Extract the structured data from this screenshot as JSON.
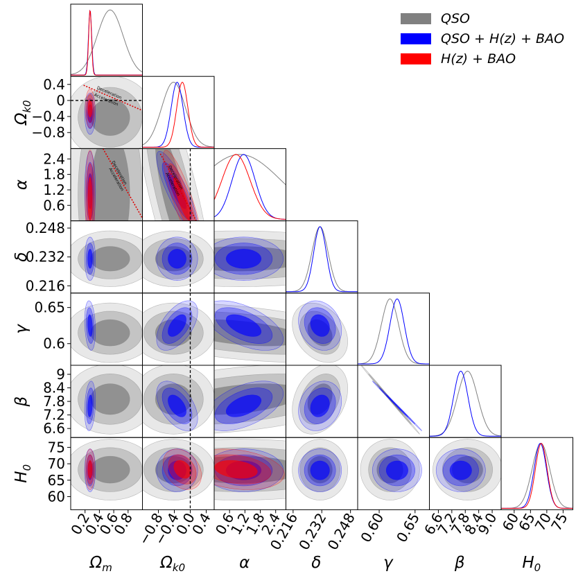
{
  "chart_data": {
    "type": "corner",
    "parameters": [
      {
        "name": "Omega_m",
        "label": "Ω",
        "sub": "m",
        "range": [
          0.0,
          1.0
        ],
        "ticks": [
          "0.2",
          "0.4",
          "0.6",
          "0.8"
        ],
        "tick_values": [
          0.2,
          0.4,
          0.6,
          0.8
        ]
      },
      {
        "name": "Omega_k0",
        "label": "Ω",
        "sub": "k0",
        "range": [
          -1.2,
          0.6
        ],
        "ticks": [
          "−0.8",
          "−0.4",
          "0",
          "0.4"
        ],
        "x_ticks": [
          "−0.8",
          "−0.4",
          "0.0",
          "0.4"
        ],
        "tick_values": [
          -0.8,
          -0.4,
          0.0,
          0.4
        ]
      },
      {
        "name": "alpha",
        "label": "α",
        "sub": "",
        "range": [
          0.0,
          2.8
        ],
        "ticks": [
          "0.6",
          "1.2",
          "1.8",
          "2.4"
        ],
        "tick_values": [
          0.6,
          1.2,
          1.8,
          2.4
        ]
      },
      {
        "name": "delta",
        "label": "δ",
        "sub": "",
        "range": [
          0.212,
          0.252
        ],
        "ticks": [
          "0.216",
          "0.232",
          "0.248"
        ],
        "tick_values": [
          0.216,
          0.232,
          0.248
        ]
      },
      {
        "name": "gamma",
        "label": "γ",
        "sub": "",
        "range": [
          0.57,
          0.67
        ],
        "ticks": [
          "0.6",
          "0.65"
        ],
        "x_ticks": [
          "0.60",
          "0.65"
        ],
        "tick_values": [
          0.6,
          0.65
        ]
      },
      {
        "name": "beta",
        "label": "β",
        "sub": "",
        "range": [
          6.2,
          9.4
        ],
        "ticks": [
          "6.6",
          "7.2",
          "7.8",
          "8.4",
          "9"
        ],
        "x_ticks": [
          "6.6",
          "7.2",
          "7.8",
          "8.4",
          "9.0"
        ],
        "tick_values": [
          6.6,
          7.2,
          7.8,
          8.4,
          9.0
        ]
      },
      {
        "name": "H_0",
        "label": "H",
        "sub": "0",
        "range": [
          56,
          78
        ],
        "ticks": [
          "60",
          "65",
          "70",
          "75"
        ],
        "tick_values": [
          60,
          65,
          70,
          75
        ]
      }
    ],
    "series": [
      {
        "name": "QSO",
        "label": "QSO",
        "color": "#808080",
        "mean": [
          0.55,
          -0.42,
          1.0,
          0.231,
          0.615,
          7.9,
          68.2
        ],
        "sigma": [
          0.18,
          0.3,
          1.6,
          0.0045,
          0.012,
          0.45,
          2.7
        ],
        "corr": {
          "2-4": -0.45,
          "2-5": 0.4,
          "3-4": -0.3,
          "3-5": 0.3,
          "4-5": -0.999,
          "1-2": -0.8
        }
      },
      {
        "name": "QSO+H(z)+BAO",
        "label": "QSO + H(z) + BAO",
        "color": "#0000ff",
        "mean": [
          0.27,
          -0.33,
          1.15,
          0.231,
          0.625,
          7.6,
          68.0
        ],
        "sigma": [
          0.022,
          0.15,
          0.45,
          0.0035,
          0.01,
          0.32,
          1.9
        ],
        "corr": {
          "1-2": -0.85,
          "1-4": 0.55,
          "1-5": -0.5,
          "2-4": -0.55,
          "2-5": 0.5,
          "3-4": -0.2,
          "3-5": 0.2,
          "4-5": -0.999,
          "0-4": -0.2,
          "0-5": 0.2
        }
      },
      {
        "name": "H(z)+BAO",
        "label": "H(z) + BAO",
        "color": "#ff0000",
        "mean": [
          0.27,
          -0.2,
          0.85,
          null,
          null,
          null,
          68.3
        ],
        "sigma": [
          0.02,
          0.14,
          0.55,
          null,
          null,
          null,
          1.8
        ],
        "corr": {
          "1-2": -0.85,
          "1-6": -0.3,
          "2-6": -0.25
        }
      }
    ],
    "annotations": {
      "deceleration": "Deceleration",
      "acceleration": "Acceleration"
    },
    "reference_lines": {
      "Omega_k0": 0.0
    }
  },
  "legend": {
    "entries": [
      {
        "label": "QSO",
        "color": "#808080"
      },
      {
        "label": "QSO + H(z) + BAO",
        "color": "#0000ff"
      },
      {
        "label": "H(z) + BAO",
        "color": "#ff0000"
      }
    ]
  }
}
